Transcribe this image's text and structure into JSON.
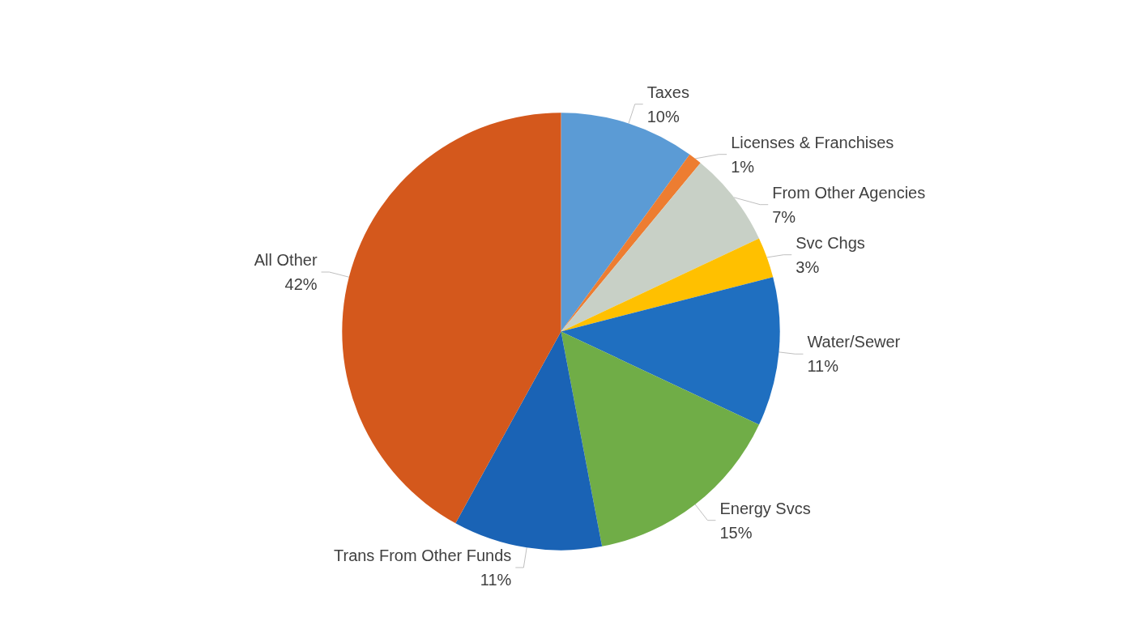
{
  "chart_data": {
    "type": "pie",
    "categories": [
      "Taxes",
      "Licenses & Franchises",
      "From Other Agencies",
      "Svc Chgs",
      "Water/Sewer",
      "Energy Svcs",
      "Trans From Other Funds",
      "All Other"
    ],
    "values": [
      10,
      1,
      7,
      3,
      11,
      15,
      11,
      42
    ],
    "value_labels": [
      "10%",
      "1%",
      "7%",
      "3%",
      "11%",
      "15%",
      "11%",
      "42%"
    ],
    "colors": [
      "#5b9bd5",
      "#ed7d31",
      "#c8d0c6",
      "#ffc000",
      "#1f6fc0",
      "#70ad47",
      "#1a63b5",
      "#d4581c"
    ],
    "legend": false
  }
}
